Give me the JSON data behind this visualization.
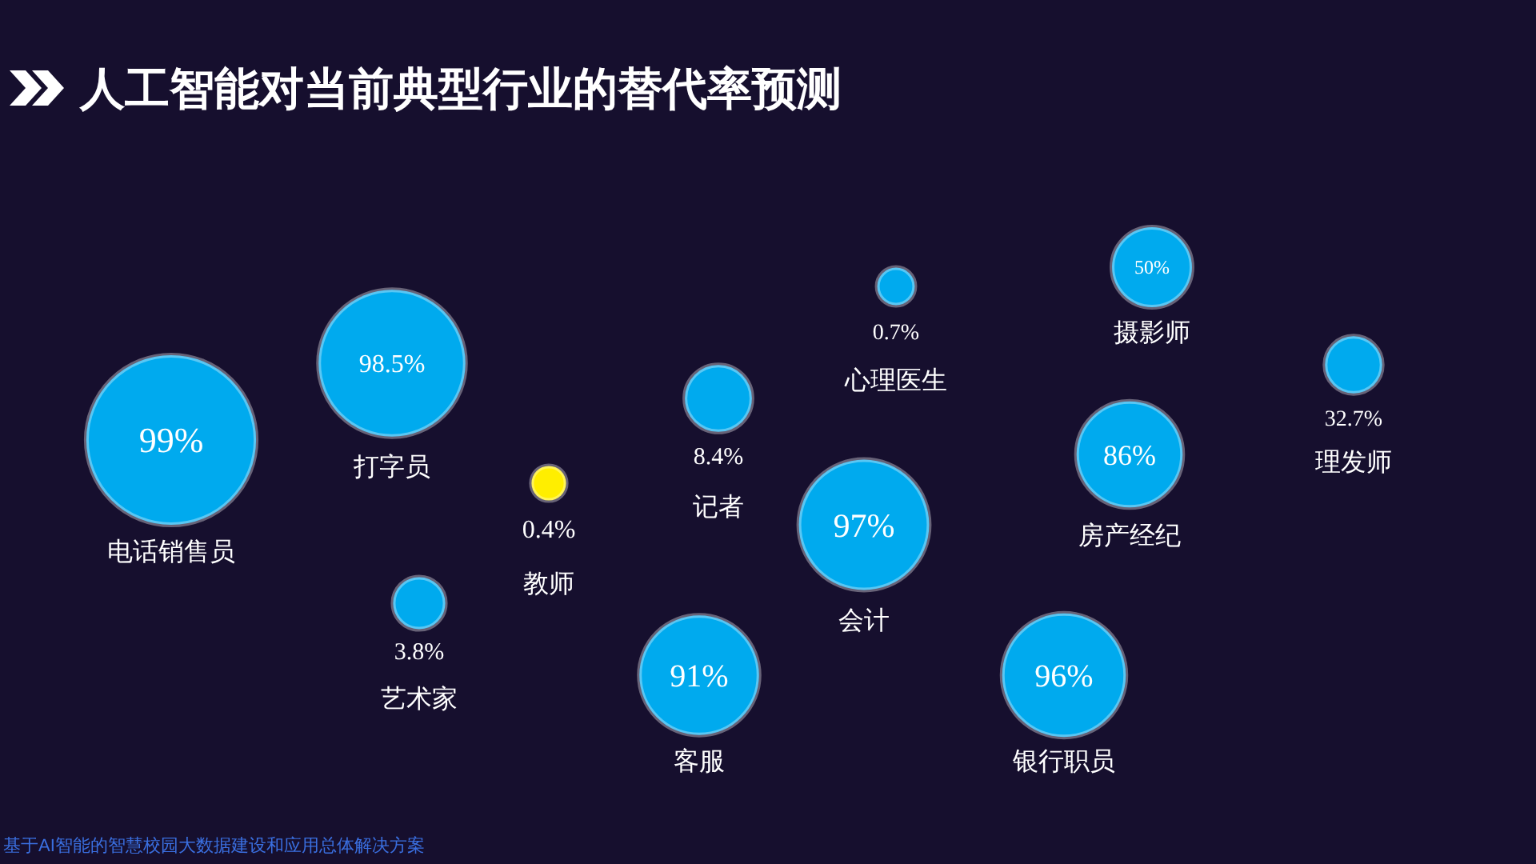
{
  "chart_data": {
    "type": "other",
    "title": "人工智能对当前典型行业的替代率预测",
    "categories": [
      "电话销售员",
      "打字员",
      "教师",
      "艺术家",
      "记者",
      "客服",
      "会计",
      "心理医生",
      "银行职员",
      "摄影师",
      "房产经纪",
      "理发师"
    ],
    "values": [
      99,
      98.5,
      0.4,
      3.8,
      8.4,
      91,
      97,
      0.7,
      96,
      50,
      86,
      32.7
    ],
    "value_labels": [
      "99%",
      "98.5%",
      "0.4%",
      "3.8%",
      "8.4%",
      "91%",
      "97%",
      "0.7%",
      "96%",
      "50%",
      "86%",
      "32.7%"
    ],
    "colors": [
      "#00aaee",
      "#00aaee",
      "#ffee00",
      "#00aaee",
      "#00aaee",
      "#00aaee",
      "#00aaee",
      "#00aaee",
      "#00aaee",
      "#00aaee",
      "#00aaee",
      "#00aaee"
    ],
    "annotations": [
      "基于AI智能的智慧校园大数据建设和应用总体解决方案"
    ]
  }
}
